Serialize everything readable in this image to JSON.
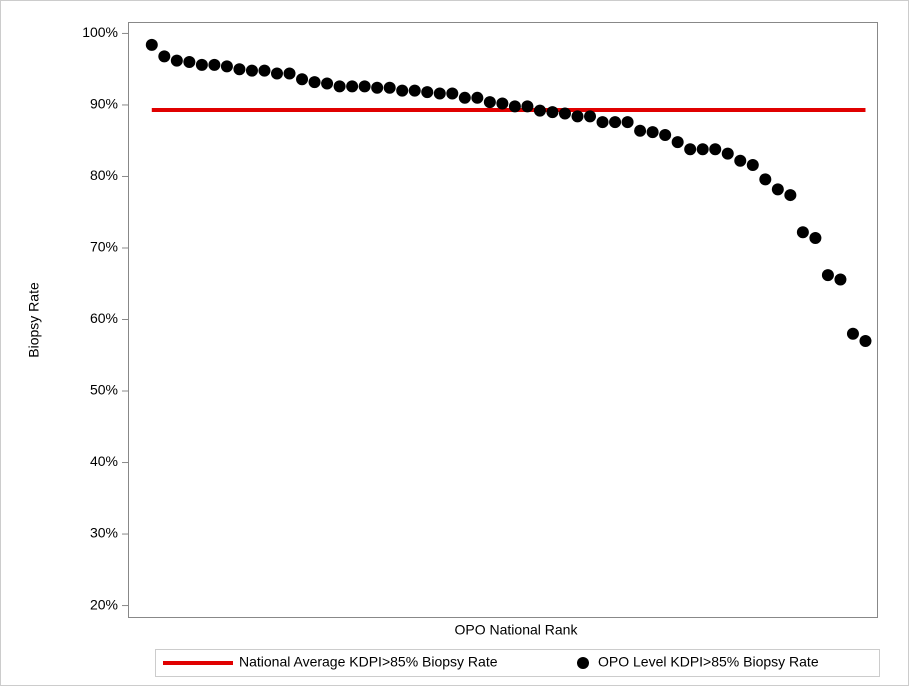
{
  "chart_data": {
    "type": "scatter",
    "x_label": "OPO National Rank",
    "y_label": "Biopsy Rate",
    "x": [
      1,
      2,
      3,
      4,
      5,
      6,
      7,
      8,
      9,
      10,
      11,
      12,
      13,
      14,
      15,
      16,
      17,
      18,
      19,
      20,
      21,
      22,
      23,
      24,
      25,
      26,
      27,
      28,
      29,
      30,
      31,
      32,
      33,
      34,
      35,
      36,
      37,
      38,
      39,
      40,
      41,
      42,
      43,
      44,
      45,
      46,
      47,
      48,
      49,
      50,
      51,
      52,
      53,
      54,
      55,
      56,
      57,
      58
    ],
    "series": [
      {
        "name": "OPO Level KDPI>85% Biopsy Rate",
        "color": "#000000",
        "values": [
          98.4,
          96.8,
          96.2,
          96.0,
          95.6,
          95.6,
          95.4,
          95.0,
          94.8,
          94.8,
          94.4,
          94.4,
          93.6,
          93.2,
          93.0,
          92.6,
          92.6,
          92.6,
          92.4,
          92.4,
          92.0,
          92.0,
          91.8,
          91.6,
          91.6,
          91.0,
          91.0,
          90.4,
          90.2,
          89.8,
          89.8,
          89.2,
          89.0,
          88.8,
          88.4,
          88.4,
          87.6,
          87.6,
          87.6,
          86.4,
          86.2,
          85.8,
          84.8,
          83.8,
          83.8,
          83.8,
          83.2,
          82.2,
          81.6,
          79.6,
          78.2,
          77.4,
          72.2,
          71.4,
          66.2,
          65.6,
          58.0,
          57.0
        ]
      }
    ],
    "reference_line": {
      "name": "National Average KDPI>85% Biopsy Rate",
      "value": 89.3,
      "color": "#e00000"
    },
    "xlim": [
      -0.9,
      59
    ],
    "ylim": [
      18.4,
      101.6
    ],
    "yticks": [
      {
        "value": 20,
        "label": "20%"
      },
      {
        "value": 30,
        "label": "30%"
      },
      {
        "value": 40,
        "label": "40%"
      },
      {
        "value": 50,
        "label": "50%"
      },
      {
        "value": 60,
        "label": "60%"
      },
      {
        "value": 70,
        "label": "70%"
      },
      {
        "value": 80,
        "label": "80%"
      },
      {
        "value": 90,
        "label": "90%"
      },
      {
        "value": 100,
        "label": "100%"
      }
    ]
  }
}
